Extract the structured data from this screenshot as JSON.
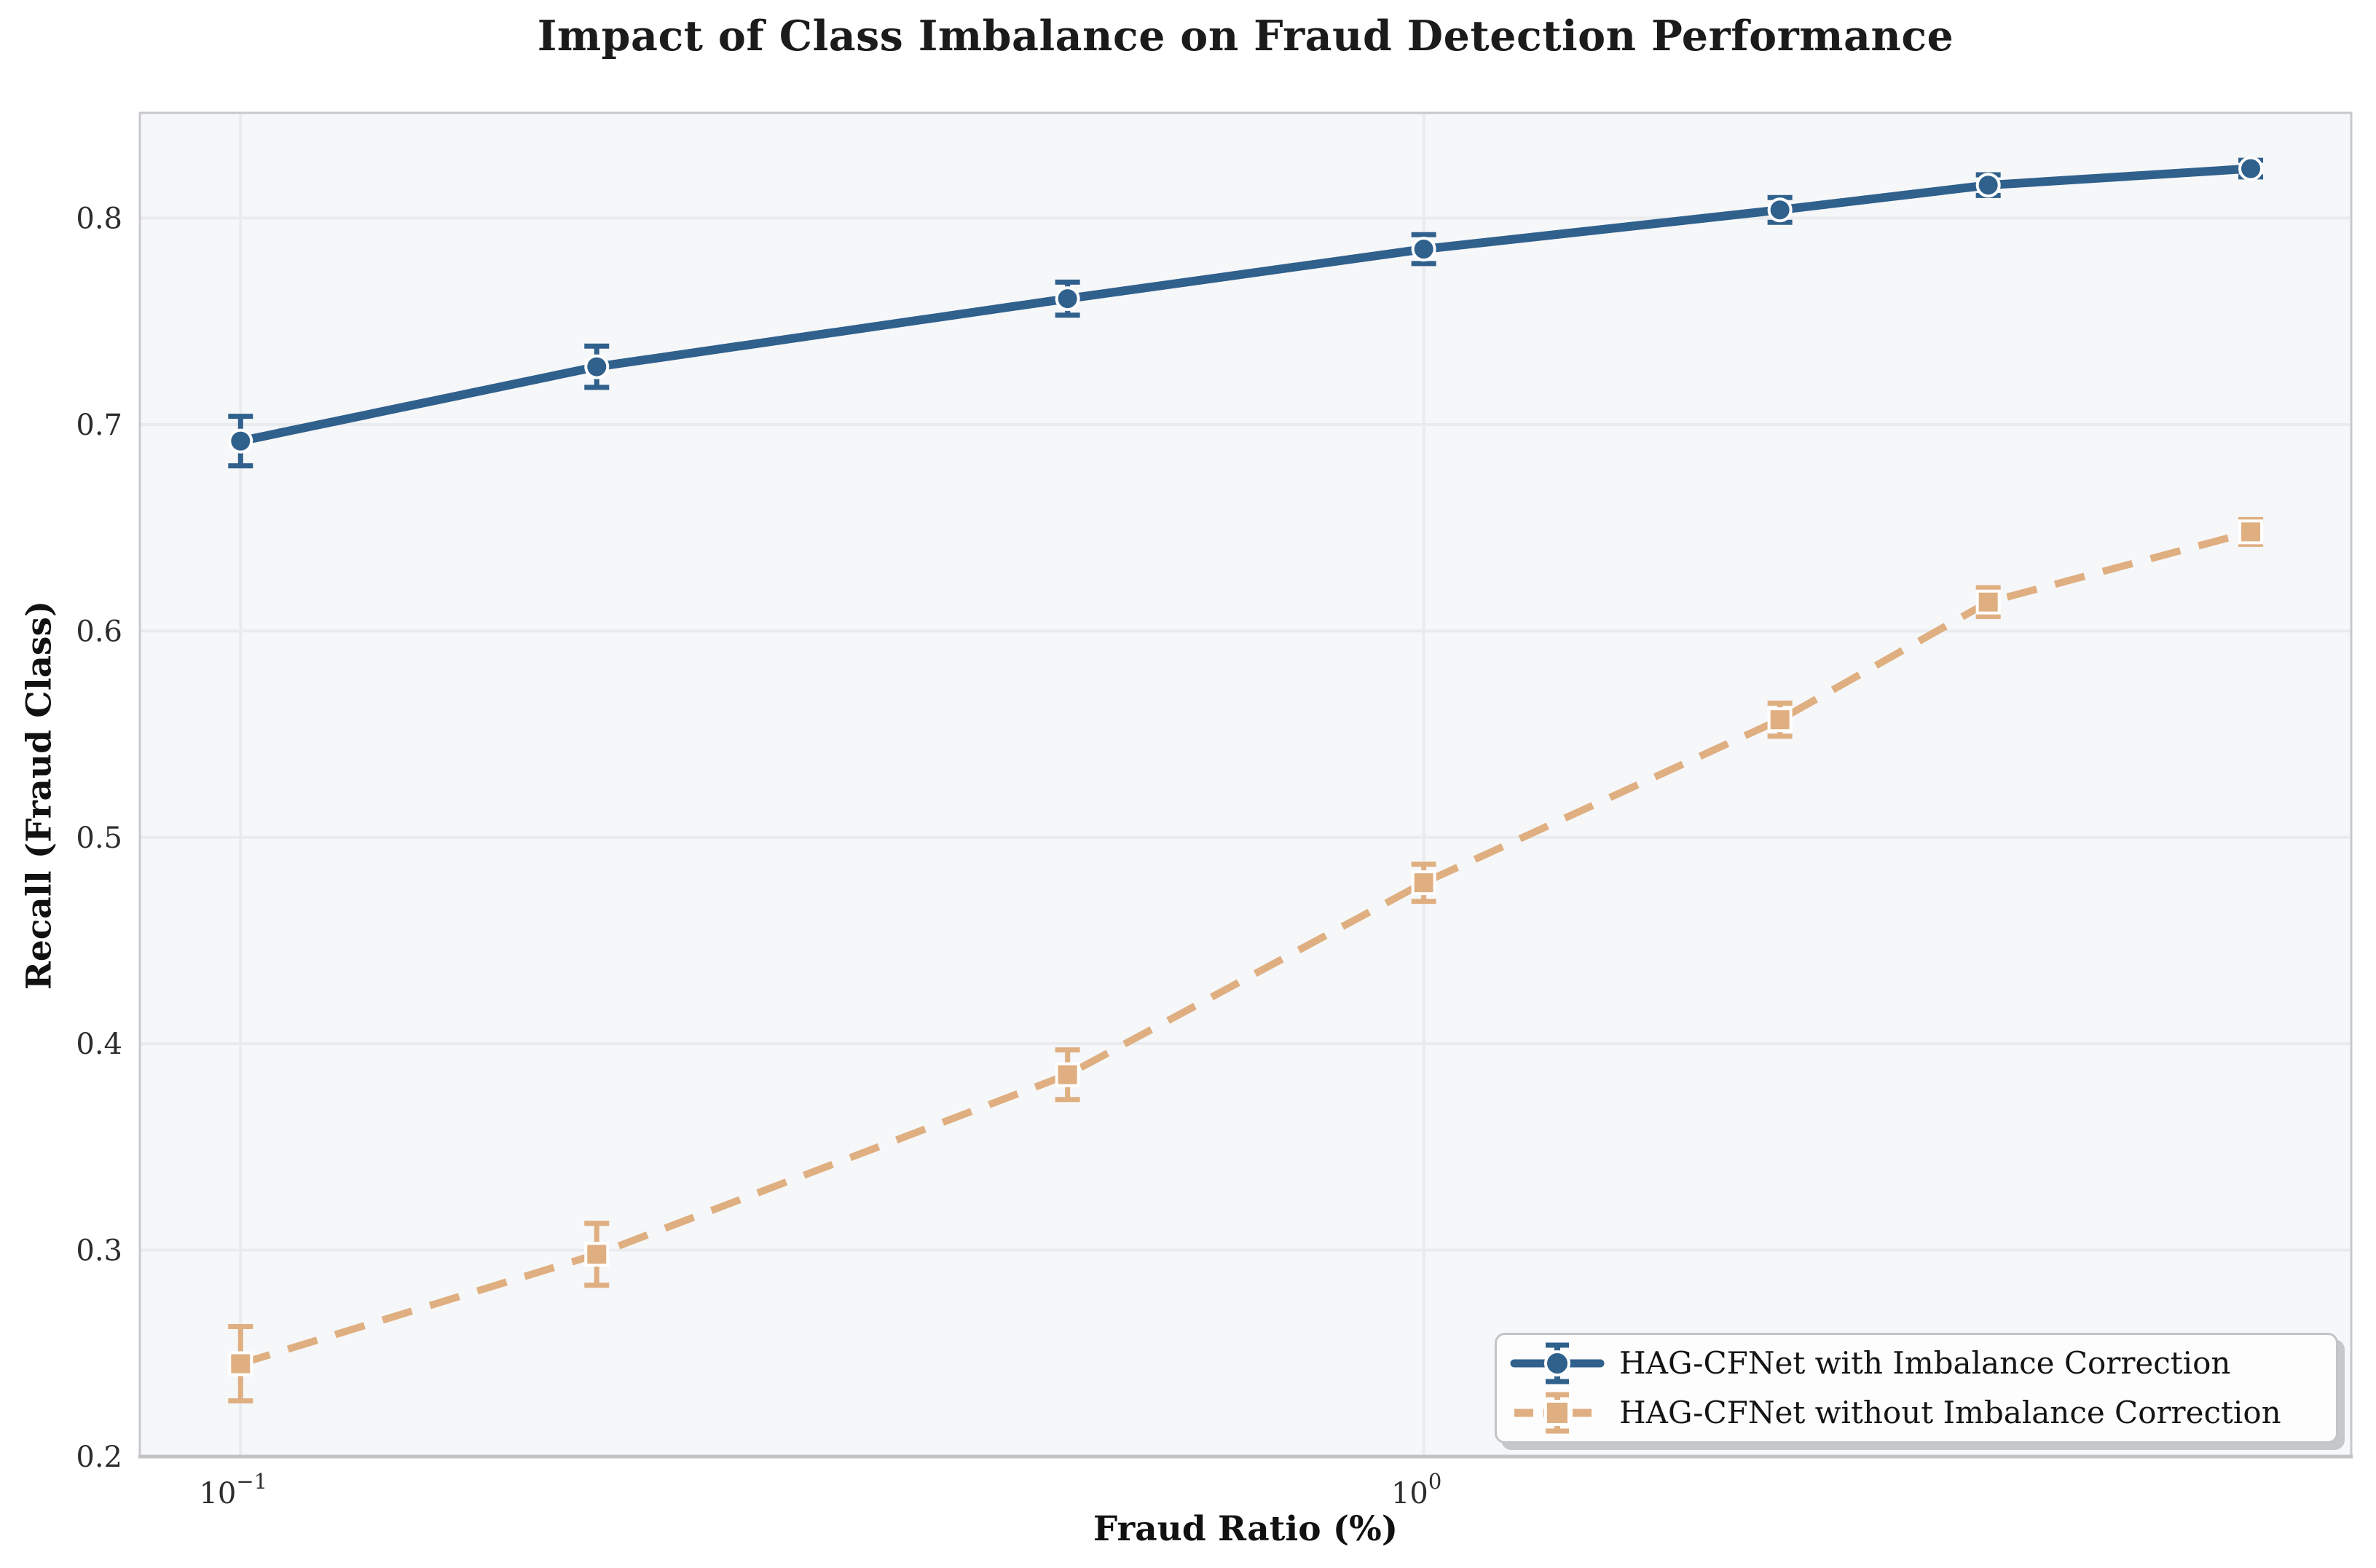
{
  "chart_data": {
    "type": "line",
    "title": "Impact of Class Imbalance on Fraud Detection Performance",
    "xlabel": "Fraud Ratio (%)",
    "ylabel": "Recall (Fraud Class)",
    "xscale": "log",
    "xlim": [
      0.0822,
      6.08
    ],
    "ylim": [
      0.2,
      0.851
    ],
    "grid": true,
    "legend_position": "lower right",
    "panel_color": "#f6f7f9",
    "grid_color": "#e9ebee",
    "spine_color": "#c7c9cd",
    "x": [
      0.1,
      0.2,
      0.5,
      1.0,
      2.0,
      3.0,
      5.0
    ],
    "xticks": [
      {
        "value": 0.1,
        "base": "10",
        "sup": "−1"
      },
      {
        "value": 1.0,
        "base": "10",
        "sup": "0"
      }
    ],
    "yticks": [
      "0.2",
      "0.3",
      "0.4",
      "0.5",
      "0.6",
      "0.7",
      "0.8"
    ],
    "series": [
      {
        "name": "HAG-CFNet with Imbalance Correction",
        "color": "#30608C",
        "marker": "circle",
        "linestyle": "solid",
        "values": [
          0.692,
          0.728,
          0.761,
          0.785,
          0.804,
          0.816,
          0.824
        ],
        "yerr": [
          0.012,
          0.01,
          0.008,
          0.007,
          0.006,
          0.005,
          0.004
        ]
      },
      {
        "name": "HAG-CFNet without Imbalance Correction",
        "color": "#DFAF81",
        "marker": "square",
        "linestyle": "dashed",
        "values": [
          0.245,
          0.298,
          0.385,
          0.478,
          0.557,
          0.614,
          0.648
        ],
        "yerr": [
          0.018,
          0.015,
          0.012,
          0.009,
          0.008,
          0.007,
          0.006
        ]
      }
    ]
  }
}
